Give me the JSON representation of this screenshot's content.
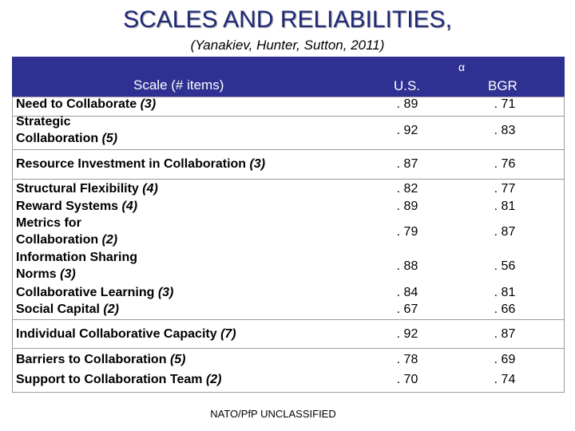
{
  "title": "SCALES AND RELIABILITIES,",
  "subtitle": "(Yanakiev, Hunter, Sutton, 2011)",
  "header": {
    "alpha": "α",
    "scale": "Scale (# items)",
    "us": "U.S.",
    "bgr": "BGR"
  },
  "rows": [
    {
      "name": "Need to Collaborate",
      "items": "(3)",
      "us": ". 89",
      "bgr": ". 71"
    },
    {
      "name": "Strategic",
      "name2": "Collaboration",
      "items": "(5)",
      "us": ". 92",
      "bgr": ". 83"
    },
    {
      "name": "Resource Investment in Collaboration",
      "items": "(3)",
      "us": ". 87",
      "bgr": ". 76"
    },
    {
      "name": "Structural Flexibility",
      "items": "(4)",
      "us": ". 82",
      "bgr": ". 77"
    },
    {
      "name": "Reward Systems",
      "items": "(4)",
      "us": ". 89",
      "bgr": ". 81"
    },
    {
      "name": "Metrics for",
      "name2": "Collaboration",
      "items": "(2)",
      "us": ". 79",
      "bgr": ". 87"
    },
    {
      "name": "Information Sharing",
      "name2": "Norms",
      "items": "(3)",
      "us": ". 88",
      "bgr": ". 56"
    },
    {
      "name": "Collaborative Learning",
      "items": "(3)",
      "us": ". 84",
      "bgr": ". 81"
    },
    {
      "name": "Social Capital",
      "items": "(2)",
      "us": ". 67",
      "bgr": ". 66"
    },
    {
      "name": "Individual Collaborative Capacity",
      "items": "(7)",
      "us": ". 92",
      "bgr": ". 87"
    },
    {
      "name": "Barriers to Collaboration",
      "items": "(5)",
      "us": ". 78",
      "bgr": ". 69"
    },
    {
      "name": "Support to Collaboration Team",
      "items": "(2)",
      "us": ". 70",
      "bgr": ". 74"
    }
  ],
  "footer": "NATO/PfP UNCLASSIFIED"
}
